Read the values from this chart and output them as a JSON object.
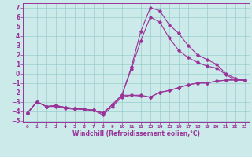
{
  "xlabel": "Windchill (Refroidissement éolien,°C)",
  "xlim": [
    -0.5,
    23.5
  ],
  "ylim": [
    -5.2,
    7.5
  ],
  "yticks": [
    -5,
    -4,
    -3,
    -2,
    -1,
    0,
    1,
    2,
    3,
    4,
    5,
    6,
    7
  ],
  "xticks": [
    0,
    1,
    2,
    3,
    4,
    5,
    6,
    7,
    8,
    9,
    10,
    11,
    12,
    13,
    14,
    15,
    16,
    17,
    18,
    19,
    20,
    21,
    22,
    23
  ],
  "bg_color": "#cceaea",
  "grid_color": "#99cccc",
  "line_color": "#993399",
  "lines": [
    {
      "x": [
        0,
        1,
        2,
        3,
        4,
        5,
        6,
        7,
        8,
        9,
        10,
        11,
        12,
        13,
        14,
        15,
        16,
        17,
        18,
        19,
        20,
        21,
        22,
        23
      ],
      "y": [
        -4.2,
        -3.0,
        -3.5,
        -3.5,
        -3.7,
        -3.8,
        -3.8,
        -3.9,
        -4.4,
        -3.5,
        -2.5,
        -2.3,
        -2.3,
        -2.5,
        -2.0,
        -1.8,
        -1.5,
        -1.2,
        -1.0,
        -1.0,
        -0.8,
        -0.7,
        -0.7,
        -0.7
      ]
    },
    {
      "x": [
        0,
        1,
        2,
        3,
        4,
        5,
        6,
        7,
        8,
        9,
        10,
        11,
        12,
        13,
        14,
        15,
        16,
        17,
        18,
        19,
        20,
        21,
        22,
        23
      ],
      "y": [
        -4.2,
        -3.0,
        -3.5,
        -3.4,
        -3.6,
        -3.7,
        -3.8,
        -3.9,
        -4.2,
        -3.3,
        -2.3,
        -2.3,
        -2.4,
        -2.5,
        -2.0,
        -1.8,
        -1.5,
        -1.2,
        -1.0,
        -1.0,
        -0.8,
        -0.7,
        -0.6,
        -0.7
      ]
    },
    {
      "x": [
        0,
        1,
        2,
        3,
        4,
        5,
        6,
        7,
        8,
        9,
        10,
        11,
        12,
        13,
        14,
        15,
        16,
        17,
        18,
        19,
        20,
        21,
        22,
        23
      ],
      "y": [
        -4.2,
        -3.0,
        -3.5,
        -3.4,
        -3.6,
        -3.7,
        -3.8,
        -3.9,
        -4.2,
        -3.3,
        -2.3,
        0.7,
        4.5,
        7.0,
        6.7,
        5.2,
        4.3,
        3.0,
        2.0,
        1.5,
        1.0,
        0.0,
        -0.5,
        -0.7
      ]
    },
    {
      "x": [
        0,
        1,
        2,
        3,
        4,
        5,
        6,
        7,
        8,
        9,
        10,
        11,
        12,
        13,
        14,
        15,
        16,
        17,
        18,
        19,
        20,
        21,
        22,
        23
      ],
      "y": [
        -4.2,
        -3.0,
        -3.5,
        -3.4,
        -3.6,
        -3.7,
        -3.8,
        -3.9,
        -4.2,
        -3.3,
        -2.3,
        0.5,
        3.5,
        6.0,
        5.5,
        3.8,
        2.5,
        1.7,
        1.2,
        0.8,
        0.6,
        -0.1,
        -0.7,
        -0.7
      ]
    }
  ]
}
